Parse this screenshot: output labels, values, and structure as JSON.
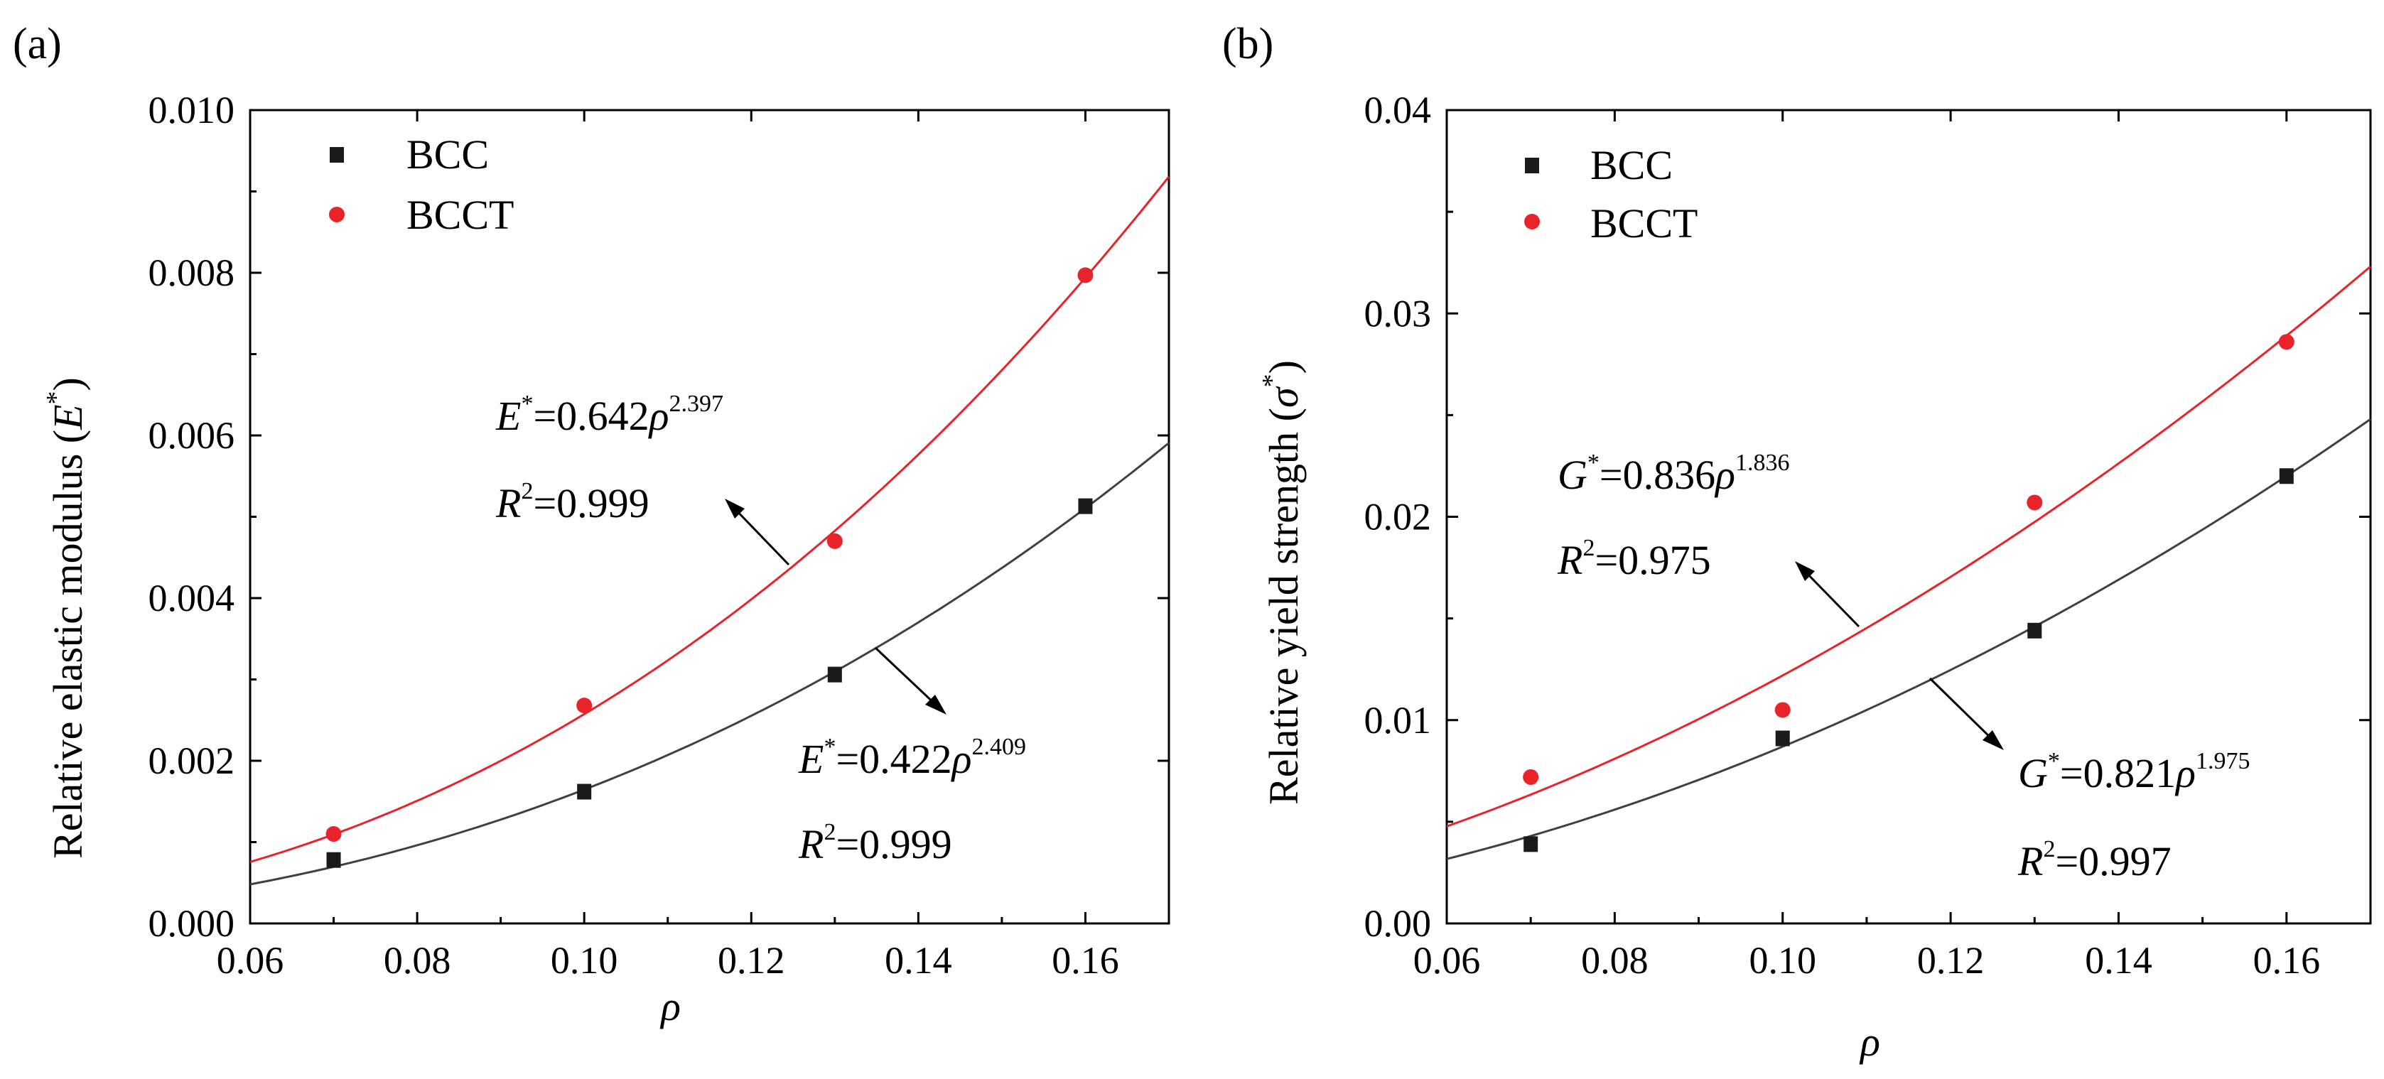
{
  "figure": {
    "panel_labels": [
      "(a)",
      "(b)"
    ],
    "legend": {
      "bcc_label": "BCC",
      "bcct_label": "BCCT"
    },
    "colors": {
      "bcc": "#1a1a1a",
      "bcct": "#e8232a",
      "bcc_fit": "#404040",
      "bcct_fit": "#e8232a"
    }
  },
  "chart_data": [
    {
      "type": "scatter",
      "panel": "(a)",
      "title": "",
      "xlabel": "ρ",
      "ylabel_prefix": "Relative elastic modulus (",
      "ylabel_symbol": "E",
      "ylabel_sup": "*",
      "ylabel_suffix": ")",
      "xlim": [
        0.06,
        0.17
      ],
      "ylim": [
        0.0,
        0.01
      ],
      "xticks": [
        0.06,
        0.08,
        0.1,
        0.12,
        0.14,
        0.16
      ],
      "xtick_labels": [
        "0.06",
        "0.08",
        "0.10",
        "0.12",
        "0.14",
        "0.16"
      ],
      "yticks": [
        0.0,
        0.002,
        0.004,
        0.006,
        0.008,
        0.01
      ],
      "ytick_labels": [
        "0.000",
        "0.002",
        "0.004",
        "0.006",
        "0.008",
        "0.010"
      ],
      "legend_position": "top-left",
      "series": [
        {
          "name": "BCC",
          "x": [
            0.07,
            0.1,
            0.13,
            0.16
          ],
          "y": [
            0.00078,
            0.00162,
            0.00306,
            0.00513
          ],
          "fit": {
            "coef": 0.422,
            "exp": 2.409
          }
        },
        {
          "name": "BCCT",
          "x": [
            0.07,
            0.1,
            0.13,
            0.16
          ],
          "y": [
            0.0011,
            0.00268,
            0.0047,
            0.00797
          ],
          "fit": {
            "coef": 0.642,
            "exp": 2.397
          }
        }
      ],
      "annotations": [
        {
          "symbol": "E",
          "sup": "*",
          "mid": "=0.642",
          "var": "ρ",
          "exp": "2.397",
          "r2": "=0.999",
          "r_label": "R",
          "r_sup": "2"
        },
        {
          "symbol": "E",
          "sup": "*",
          "mid": "=0.422",
          "var": "ρ",
          "exp": "2.409",
          "r2": "=0.999",
          "r_label": "R",
          "r_sup": "2"
        }
      ]
    },
    {
      "type": "scatter",
      "panel": "(b)",
      "title": "",
      "xlabel": "ρ",
      "ylabel_prefix": "Relative yield strength (",
      "ylabel_symbol": "σ",
      "ylabel_sup": "*",
      "ylabel_suffix": ")",
      "xlim": [
        0.06,
        0.17
      ],
      "ylim": [
        0.0,
        0.04
      ],
      "xticks": [
        0.06,
        0.08,
        0.1,
        0.12,
        0.14,
        0.16
      ],
      "xtick_labels": [
        "0.06",
        "0.08",
        "0.10",
        "0.12",
        "0.14",
        "0.16"
      ],
      "yticks": [
        0.0,
        0.01,
        0.02,
        0.03,
        0.04
      ],
      "ytick_labels": [
        "0.00",
        "0.01",
        "0.02",
        "0.03",
        "0.04"
      ],
      "legend_position": "top-left",
      "series": [
        {
          "name": "BCC",
          "x": [
            0.07,
            0.1,
            0.13,
            0.16
          ],
          "y": [
            0.0039,
            0.0091,
            0.0144,
            0.022
          ],
          "fit": {
            "coef": 0.821,
            "exp": 1.975
          }
        },
        {
          "name": "BCCT",
          "x": [
            0.07,
            0.1,
            0.13,
            0.16
          ],
          "y": [
            0.0072,
            0.0105,
            0.0207,
            0.0286
          ],
          "fit": {
            "coef": 0.836,
            "exp": 1.836
          }
        }
      ],
      "annotations": [
        {
          "symbol": "G",
          "sup": "*",
          "mid": "=0.836",
          "var": "ρ",
          "exp": "1.836",
          "r2": "=0.975",
          "r_label": "R",
          "r_sup": "2"
        },
        {
          "symbol": "G",
          "sup": "*",
          "mid": "=0.821",
          "var": "ρ",
          "exp": "1.975",
          "r2": "=0.997",
          "r_label": "R",
          "r_sup": "2"
        }
      ]
    }
  ]
}
